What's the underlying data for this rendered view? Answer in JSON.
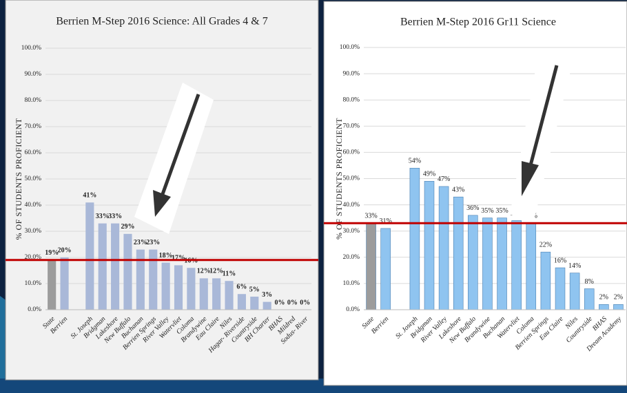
{
  "chart_data": [
    {
      "type": "bar",
      "title": "Berrien M-Step 2016 Science: All Grades 4 & 7",
      "y_label": "% OF STUDENTS PROFICIENT",
      "categories": [
        "State",
        "Berrien",
        null,
        "St. Joseph",
        "Bridgman",
        "Lakeshore",
        "New Buffalo",
        "Buchanan",
        "Berrien Springs",
        "River Valley",
        "Watervliet",
        "Coloma",
        "Brandywine",
        "Eau Claire",
        "Niles",
        "Hagar- Riverside",
        "Countryside",
        "BH Charter",
        "BHAS",
        "Mildred",
        "Sodus- River"
      ],
      "values": [
        19,
        20,
        null,
        41,
        33,
        33,
        29,
        23,
        23,
        18,
        17,
        16,
        12,
        12,
        11,
        6,
        5,
        3,
        0,
        0,
        0
      ],
      "value_labels": [
        "19%",
        "20%",
        null,
        "41%",
        "33%",
        "33%",
        "29%",
        "23%",
        "23%",
        "18%",
        "17%",
        "16%",
        "12%",
        "12%",
        "11%",
        "6%",
        "5%",
        "3%",
        "0%",
        "0%",
        "0%"
      ],
      "colors": [
        "#9c9c9c",
        "#a9b8d8",
        null,
        "#a9b8d8",
        "#a9b8d8",
        "#a9b8d8",
        "#a9b8d8",
        "#a9b8d8",
        "#a9b8d8",
        "#a9b8d8",
        "#a9b8d8",
        "#a9b8d8",
        "#a9b8d8",
        "#a9b8d8",
        "#a9b8d8",
        "#a9b8d8",
        "#a9b8d8",
        "#a9b8d8",
        "#a9b8d8",
        "#a9b8d8",
        "#a9b8d8"
      ],
      "reference_line": {
        "value": 19,
        "color": "#c00000"
      },
      "ylim": [
        0,
        100
      ],
      "yticks": [
        {
          "value": 0,
          "label": "0.0%"
        },
        {
          "value": 10,
          "label": "10.0%"
        },
        {
          "value": 20,
          "label": "20.0%"
        },
        {
          "value": 30,
          "label": "30.0%"
        },
        {
          "value": 40,
          "label": "40.0%"
        },
        {
          "value": 50,
          "label": "50.0%"
        },
        {
          "value": 60,
          "label": "60.0%"
        },
        {
          "value": 70,
          "label": "70.0%"
        },
        {
          "value": 80,
          "label": "80.0%"
        },
        {
          "value": 90,
          "label": "90.0%"
        },
        {
          "value": 100,
          "label": "100.0%"
        }
      ],
      "grid": true
    },
    {
      "type": "bar",
      "title": "Berrien M-Step 2016 Gr11 Science",
      "y_label": "% OF STUDENTS PROFICIENT",
      "categories": [
        "State",
        "Berrien",
        null,
        "St. Joseph",
        "Bridgman",
        "River Valley",
        "Lakeshore",
        "New Buffalo",
        "Brandywine",
        "Buchanan",
        "Watervliet",
        "Coloma",
        "Berrien Springs",
        "Eau Claire",
        "Niles",
        "Countryside",
        "BHAS",
        "Dream Academy"
      ],
      "values": [
        33,
        31,
        null,
        54,
        49,
        47,
        43,
        36,
        35,
        35,
        34,
        33,
        22,
        16,
        14,
        8,
        2,
        2
      ],
      "value_labels": [
        "33%",
        "31%",
        null,
        "54%",
        "49%",
        "47%",
        "43%",
        "36%",
        "35%",
        "35%",
        "34%",
        "33%",
        "22%",
        "16%",
        "14%",
        "8%",
        "2%",
        "2%"
      ],
      "colors": [
        "#9c9c9c",
        "#8fc4f0",
        null,
        "#8fc4f0",
        "#8fc4f0",
        "#8fc4f0",
        "#8fc4f0",
        "#8fc4f0",
        "#8fc4f0",
        "#8fc4f0",
        "#8fc4f0",
        "#8fc4f0",
        "#8fc4f0",
        "#8fc4f0",
        "#8fc4f0",
        "#8fc4f0",
        "#8fc4f0",
        "#8fc4f0"
      ],
      "reference_line": {
        "value": 33,
        "color": "#c00000"
      },
      "ylim": [
        0,
        100
      ],
      "yticks": [
        {
          "value": 0,
          "label": "0.0%"
        },
        {
          "value": 10,
          "label": "10.0%"
        },
        {
          "value": 20,
          "label": "20.0%"
        },
        {
          "value": 30,
          "label": "30.0%"
        },
        {
          "value": 40,
          "label": "40.0%"
        },
        {
          "value": 50,
          "label": "50.0%"
        },
        {
          "value": 60,
          "label": "60.0%"
        },
        {
          "value": 70,
          "label": "70.0%"
        },
        {
          "value": 80,
          "label": "80.0%"
        },
        {
          "value": 90,
          "label": "90.0%"
        },
        {
          "value": 100,
          "label": "100.0%"
        }
      ],
      "grid": true
    }
  ]
}
